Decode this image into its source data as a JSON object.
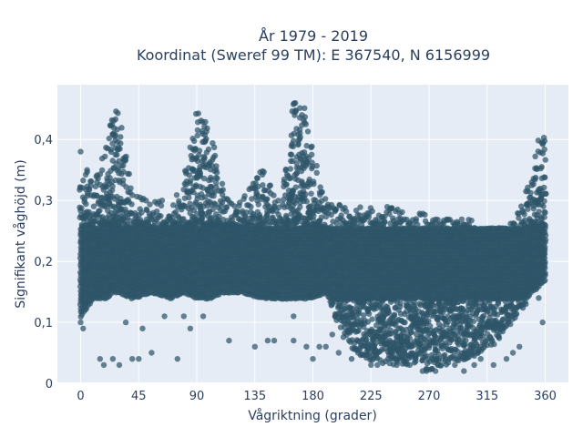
{
  "chart_data": {
    "type": "scatter",
    "title_line1": "År 1979 - 2019",
    "title_line2": "Koordinat (Sweref 99 TM): E 367540, N 6156999",
    "xlabel": "Vågriktning (grader)",
    "ylabel": "Signifikant våghöjd (m)",
    "xlim": [
      -18,
      378
    ],
    "ylim": [
      0,
      0.49
    ],
    "xticks": [
      0,
      45,
      90,
      135,
      180,
      225,
      270,
      315,
      360
    ],
    "xtick_labels": [
      "0",
      "45",
      "90",
      "135",
      "180",
      "225",
      "270",
      "315",
      "360"
    ],
    "yticks": [
      0,
      0.1,
      0.2,
      0.3,
      0.4
    ],
    "ytick_labels": [
      "0",
      "0,1",
      "0,2",
      "0,3",
      "0,4"
    ],
    "grid": true,
    "marker_color": "#2e5468",
    "background_color": "#e5ecf6",
    "envelope": [
      {
        "x": 0,
        "ymin": 0.1,
        "ymax": 0.37
      },
      {
        "x": 10,
        "ymin": 0.13,
        "ymax": 0.33
      },
      {
        "x": 20,
        "ymin": 0.13,
        "ymax": 0.4
      },
      {
        "x": 25,
        "ymin": 0.14,
        "ymax": 0.46
      },
      {
        "x": 30,
        "ymin": 0.14,
        "ymax": 0.44
      },
      {
        "x": 40,
        "ymin": 0.13,
        "ymax": 0.31
      },
      {
        "x": 55,
        "ymin": 0.14,
        "ymax": 0.3
      },
      {
        "x": 70,
        "ymin": 0.13,
        "ymax": 0.3
      },
      {
        "x": 80,
        "ymin": 0.14,
        "ymax": 0.33
      },
      {
        "x": 90,
        "ymin": 0.13,
        "ymax": 0.45
      },
      {
        "x": 100,
        "ymin": 0.13,
        "ymax": 0.43
      },
      {
        "x": 110,
        "ymin": 0.14,
        "ymax": 0.32
      },
      {
        "x": 125,
        "ymin": 0.14,
        "ymax": 0.3
      },
      {
        "x": 140,
        "ymin": 0.13,
        "ymax": 0.36
      },
      {
        "x": 155,
        "ymin": 0.13,
        "ymax": 0.3
      },
      {
        "x": 165,
        "ymin": 0.13,
        "ymax": 0.47
      },
      {
        "x": 172,
        "ymin": 0.13,
        "ymax": 0.46
      },
      {
        "x": 180,
        "ymin": 0.13,
        "ymax": 0.38
      },
      {
        "x": 190,
        "ymin": 0.14,
        "ymax": 0.3
      },
      {
        "x": 205,
        "ymin": 0.07,
        "ymax": 0.29
      },
      {
        "x": 220,
        "ymin": 0.04,
        "ymax": 0.29
      },
      {
        "x": 240,
        "ymin": 0.03,
        "ymax": 0.29
      },
      {
        "x": 260,
        "ymin": 0.03,
        "ymax": 0.28
      },
      {
        "x": 270,
        "ymin": 0.02,
        "ymax": 0.28
      },
      {
        "x": 285,
        "ymin": 0.03,
        "ymax": 0.27
      },
      {
        "x": 300,
        "ymin": 0.04,
        "ymax": 0.27
      },
      {
        "x": 320,
        "ymin": 0.06,
        "ymax": 0.26
      },
      {
        "x": 335,
        "ymin": 0.1,
        "ymax": 0.27
      },
      {
        "x": 345,
        "ymin": 0.13,
        "ymax": 0.31
      },
      {
        "x": 355,
        "ymin": 0.15,
        "ymax": 0.4
      },
      {
        "x": 360,
        "ymin": 0.16,
        "ymax": 0.41
      }
    ],
    "points": [
      {
        "x": 0,
        "y": 0.38
      },
      {
        "x": 0,
        "y": 0.1
      },
      {
        "x": 2,
        "y": 0.09
      },
      {
        "x": 5,
        "y": 0.35
      },
      {
        "x": 15,
        "y": 0.04
      },
      {
        "x": 18,
        "y": 0.03
      },
      {
        "x": 25,
        "y": 0.04
      },
      {
        "x": 30,
        "y": 0.03
      },
      {
        "x": 35,
        "y": 0.1
      },
      {
        "x": 40,
        "y": 0.04
      },
      {
        "x": 45,
        "y": 0.04
      },
      {
        "x": 48,
        "y": 0.09
      },
      {
        "x": 55,
        "y": 0.05
      },
      {
        "x": 65,
        "y": 0.11
      },
      {
        "x": 75,
        "y": 0.04
      },
      {
        "x": 80,
        "y": 0.11
      },
      {
        "x": 85,
        "y": 0.09
      },
      {
        "x": 95,
        "y": 0.11
      },
      {
        "x": 105,
        "y": 0.35
      },
      {
        "x": 115,
        "y": 0.07
      },
      {
        "x": 135,
        "y": 0.06
      },
      {
        "x": 145,
        "y": 0.07
      },
      {
        "x": 150,
        "y": 0.07
      },
      {
        "x": 165,
        "y": 0.07
      },
      {
        "x": 165,
        "y": 0.11
      },
      {
        "x": 175,
        "y": 0.06
      },
      {
        "x": 180,
        "y": 0.04
      },
      {
        "x": 185,
        "y": 0.06
      },
      {
        "x": 190,
        "y": 0.06
      },
      {
        "x": 195,
        "y": 0.08
      },
      {
        "x": 200,
        "y": 0.05
      },
      {
        "x": 210,
        "y": 0.04
      },
      {
        "x": 215,
        "y": 0.05
      },
      {
        "x": 225,
        "y": 0.03
      },
      {
        "x": 230,
        "y": 0.03
      },
      {
        "x": 245,
        "y": 0.03
      },
      {
        "x": 255,
        "y": 0.03
      },
      {
        "x": 265,
        "y": 0.02
      },
      {
        "x": 268,
        "y": 0.02
      },
      {
        "x": 275,
        "y": 0.02
      },
      {
        "x": 290,
        "y": 0.03
      },
      {
        "x": 297,
        "y": 0.02
      },
      {
        "x": 305,
        "y": 0.03
      },
      {
        "x": 310,
        "y": 0.04
      },
      {
        "x": 320,
        "y": 0.03
      },
      {
        "x": 330,
        "y": 0.04
      },
      {
        "x": 335,
        "y": 0.05
      },
      {
        "x": 340,
        "y": 0.06
      },
      {
        "x": 345,
        "y": 0.13
      },
      {
        "x": 355,
        "y": 0.14
      },
      {
        "x": 358,
        "y": 0.1
      }
    ]
  }
}
